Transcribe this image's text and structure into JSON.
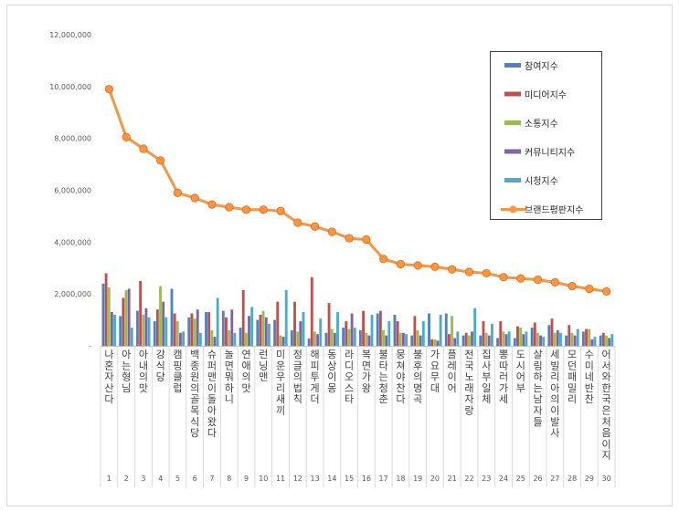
{
  "chart_data": {
    "type": "bar",
    "title": "",
    "xlabel": "",
    "ylabel": "",
    "ylim": [
      0,
      12000000
    ],
    "yticks": [
      0,
      2000000,
      4000000,
      6000000,
      8000000,
      10000000,
      12000000
    ],
    "ytick_labels": [
      "-",
      "2,000,000",
      "4,000,000",
      "6,000,000",
      "8,000,000",
      "10,000,000",
      "12,000,000"
    ],
    "grid": false,
    "legend_position": "top-right",
    "categories": [
      "나 혼자 산다",
      "아는 형님",
      "아내의 맛",
      "강식당",
      "캠핑클럽",
      "백종원의 골목식당",
      "슈퍼맨이 돌아왔다",
      "놀면 뭐하니",
      "연애의 맛",
      "런닝맨",
      "미운 우리 새끼",
      "정글의 법칙",
      "해피투게더",
      "동상이몽",
      "라디오스타",
      "복면가왕",
      "불타는 청춘",
      "뭉쳐야 찬다",
      "불후의 명곡",
      "가요무대",
      "플레이어",
      "전국노래자랑",
      "집사부일체",
      "뽕 따러 가세",
      "도시어부",
      "살림하는 남자들",
      "세빌리아의 이발사",
      "모던 패밀리",
      "수미네 반찬",
      "어서와 한국은 처음이지"
    ],
    "category_numbers": [
      "1",
      "2",
      "3",
      "4",
      "5",
      "6",
      "7",
      "8",
      "9",
      "10",
      "11",
      "12",
      "13",
      "14",
      "15",
      "16",
      "17",
      "18",
      "19",
      "20",
      "21",
      "22",
      "23",
      "24",
      "25",
      "26",
      "27",
      "28",
      "29",
      "30"
    ],
    "series": [
      {
        "name": "참여지수",
        "kind": "bar",
        "color": "#4f81bd",
        "values": [
          2400000,
          1150000,
          1350000,
          950000,
          2200000,
          1100000,
          1300000,
          1350000,
          700000,
          1000000,
          1000000,
          600000,
          280000,
          500000,
          700000,
          600000,
          1250000,
          1200000,
          400000,
          1250000,
          1250000,
          400000,
          400000,
          300000,
          300000,
          700000,
          800000,
          400000,
          550000,
          400000
        ]
      },
      {
        "name": "미디어지수",
        "kind": "bar",
        "color": "#c0504d",
        "values": [
          2800000,
          1850000,
          2500000,
          1400000,
          1250000,
          1250000,
          1300000,
          1100000,
          2150000,
          1200000,
          1700000,
          1700000,
          2650000,
          1650000,
          950000,
          1350000,
          1350000,
          950000,
          1150000,
          250000,
          450000,
          500000,
          950000,
          950000,
          750000,
          900000,
          1050000,
          800000,
          650000,
          500000
        ]
      },
      {
        "name": "소통지수",
        "kind": "bar",
        "color": "#9bbb59",
        "values": [
          2250000,
          2150000,
          1200000,
          2300000,
          950000,
          1050000,
          600000,
          600000,
          500000,
          1350000,
          400000,
          550000,
          550000,
          650000,
          650000,
          500000,
          600000,
          500000,
          600000,
          250000,
          1150000,
          400000,
          500000,
          550000,
          700000,
          500000,
          500000,
          500000,
          650000,
          400000
        ]
      },
      {
        "name": "커뮤니티지수",
        "kind": "bar",
        "color": "#8064a2",
        "values": [
          1300000,
          2200000,
          1450000,
          1700000,
          500000,
          1400000,
          350000,
          1400000,
          1150000,
          1100000,
          350000,
          950000,
          450000,
          500000,
          1250000,
          400000,
          400000,
          500000,
          400000,
          200000,
          300000,
          550000,
          400000,
          450000,
          450000,
          400000,
          600000,
          400000,
          250000,
          300000
        ]
      },
      {
        "name": "시청지수",
        "kind": "bar",
        "color": "#4bacc6",
        "values": [
          1200000,
          700000,
          1100000,
          1100000,
          550000,
          500000,
          1850000,
          500000,
          1500000,
          850000,
          2150000,
          1300000,
          1050000,
          1300000,
          700000,
          1200000,
          950000,
          450000,
          950000,
          1200000,
          550000,
          1450000,
          850000,
          550000,
          550000,
          350000,
          500000,
          650000,
          350000,
          450000
        ]
      },
      {
        "name": "브랜드평판지수",
        "kind": "line",
        "color": "#f79646",
        "values": [
          9900000,
          8050000,
          7600000,
          7150000,
          5900000,
          5700000,
          5450000,
          5350000,
          5250000,
          5250000,
          5200000,
          4750000,
          4600000,
          4400000,
          4150000,
          4100000,
          3350000,
          3150000,
          3100000,
          3050000,
          2950000,
          2850000,
          2800000,
          2650000,
          2600000,
          2550000,
          2450000,
          2300000,
          2200000,
          2100000
        ]
      }
    ]
  }
}
